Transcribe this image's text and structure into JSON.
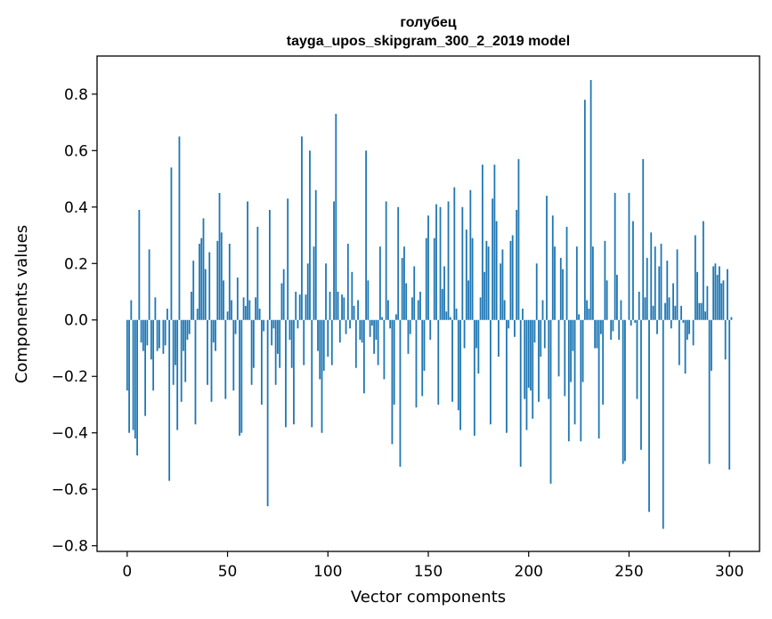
{
  "chart_data": {
    "type": "bar",
    "title": "голубец",
    "subtitle": "tayga_upos_skipgram_300_2_2019 model",
    "xlabel": "Vector components",
    "ylabel": "Components values",
    "xlim": [
      -15,
      315
    ],
    "ylim": [
      -0.82,
      0.935
    ],
    "xticks": [
      0,
      50,
      100,
      150,
      200,
      250,
      300
    ],
    "yticks": [
      -0.8,
      -0.6,
      -0.4,
      -0.2,
      0.0,
      0.2,
      0.4,
      0.6,
      0.8
    ],
    "xtick_labels": [
      "0",
      "50",
      "100",
      "150",
      "200",
      "250",
      "300"
    ],
    "ytick_labels": [
      "−0.8",
      "−0.6",
      "−0.4",
      "−0.2",
      "0.0",
      "0.2",
      "0.4",
      "0.6",
      "0.8"
    ],
    "grid": false,
    "bar_color": "#1f77b4",
    "values": [
      -0.25,
      -0.4,
      0.07,
      -0.39,
      -0.42,
      -0.48,
      0.39,
      -0.08,
      -0.11,
      -0.34,
      -0.09,
      0.25,
      -0.14,
      -0.25,
      0.08,
      -0.11,
      -0.1,
      0.0,
      -0.12,
      -0.09,
      0.04,
      -0.57,
      0.54,
      -0.23,
      -0.16,
      -0.39,
      0.65,
      -0.29,
      -0.11,
      -0.22,
      -0.07,
      -0.05,
      0.1,
      0.21,
      -0.37,
      0.04,
      0.27,
      0.29,
      0.36,
      0.18,
      -0.23,
      0.24,
      -0.29,
      -0.08,
      -0.11,
      0.28,
      0.45,
      0.31,
      0.14,
      -0.28,
      0.03,
      0.27,
      0.07,
      -0.25,
      -0.05,
      0.15,
      -0.41,
      -0.4,
      0.08,
      0.05,
      0.42,
      0.07,
      -0.23,
      -0.17,
      0.08,
      0.33,
      0.04,
      -0.3,
      -0.04,
      0.0,
      -0.66,
      0.39,
      -0.09,
      -0.03,
      -0.23,
      -0.12,
      -0.17,
      0.13,
      0.18,
      -0.38,
      0.43,
      -0.07,
      -0.17,
      -0.37,
      0.1,
      -0.03,
      0.09,
      0.65,
      -0.16,
      0.09,
      0.2,
      0.6,
      -0.38,
      0.26,
      0.46,
      -0.11,
      -0.21,
      -0.4,
      -0.18,
      0.2,
      -0.13,
      0.1,
      -0.16,
      0.42,
      0.73,
      0.1,
      -0.08,
      0.09,
      0.08,
      -0.05,
      0.27,
      -0.03,
      0.17,
      0.05,
      -0.17,
      0.07,
      -0.07,
      -0.08,
      -0.26,
      0.6,
      0.14,
      -0.06,
      -0.02,
      -0.12,
      -0.07,
      -0.16,
      0.26,
      0.01,
      -0.21,
      0.42,
      0.07,
      -0.03,
      -0.44,
      -0.3,
      0.02,
      0.4,
      -0.52,
      0.22,
      0.26,
      0.13,
      -0.12,
      -0.05,
      0.08,
      0.19,
      -0.31,
      0.07,
      0.1,
      -0.27,
      -0.18,
      0.29,
      0.37,
      -0.07,
      0.0,
      0.29,
      0.41,
      -0.3,
      0.4,
      0.11,
      0.19,
      0.03,
      0.42,
      0.01,
      -0.29,
      0.47,
      0.04,
      -0.32,
      -0.39,
      0.4,
      -0.1,
      0.32,
      0.14,
      0.46,
      0.29,
      -0.41,
      -0.1,
      -0.19,
      0.08,
      0.55,
      0.17,
      0.28,
      0.26,
      -0.37,
      0.43,
      0.55,
      0.35,
      -0.13,
      0.2,
      0.25,
      0.07,
      -0.4,
      -0.03,
      0.28,
      0.3,
      -0.06,
      0.39,
      0.57,
      -0.52,
      0.04,
      -0.28,
      -0.39,
      -0.24,
      -0.25,
      -0.35,
      -0.08,
      0.2,
      -0.29,
      -0.13,
      0.07,
      -0.1,
      0.44,
      -0.28,
      -0.58,
      0.37,
      0.26,
      0.0,
      -0.2,
      0.22,
      0.18,
      -0.27,
      0.33,
      -0.43,
      -0.22,
      -0.11,
      -0.37,
      0.26,
      0.02,
      -0.43,
      -0.22,
      0.78,
      0.07,
      0.04,
      0.85,
      0.26,
      -0.1,
      -0.1,
      -0.42,
      -0.05,
      -0.3,
      0.28,
      0.14,
      0.0,
      -0.07,
      -0.04,
      0.45,
      0.16,
      -0.07,
      0.07,
      -0.51,
      -0.5,
      0.0,
      0.45,
      -0.02,
      0.35,
      -0.01,
      -0.28,
      0.1,
      -0.46,
      0.57,
      0.08,
      0.22,
      -0.68,
      0.31,
      0.05,
      0.26,
      -0.05,
      0.19,
      0.27,
      -0.74,
      0.06,
      0.21,
      0.08,
      -0.03,
      0.13,
      0.05,
      0.25,
      -0.16,
      0.05,
      -0.01,
      -0.19,
      -0.07,
      -0.05,
      0.0,
      -0.09,
      0.3,
      0.17,
      0.06,
      0.06,
      0.35,
      0.03,
      0.12,
      -0.51,
      -0.18,
      0.19,
      0.2,
      0.16,
      0.19,
      0.13,
      0.14,
      -0.14,
      0.18,
      -0.53,
      0.01
    ]
  }
}
